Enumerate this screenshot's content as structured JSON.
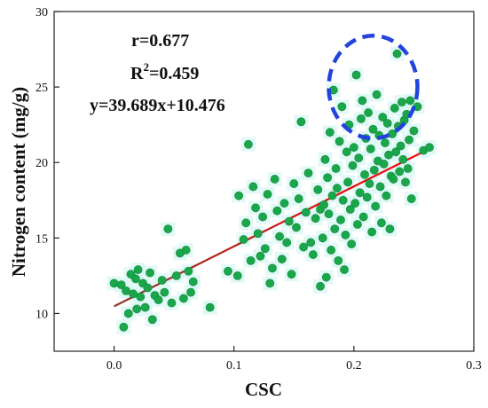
{
  "chart_data": {
    "type": "scatter",
    "xlabel": "CSC",
    "ylabel": "Nitrogen content (mg/g)",
    "xlim": [
      -0.05,
      0.3
    ],
    "ylim": [
      7.5,
      30
    ],
    "xticks": [
      0.0,
      0.1,
      0.2,
      0.3
    ],
    "xtick_labels": [
      "0.0",
      "0.1",
      "0.2",
      "0.3"
    ],
    "yticks": [
      10,
      15,
      20,
      25,
      30
    ],
    "ytick_labels": [
      "10",
      "15",
      "20",
      "25",
      "30"
    ],
    "annotations": {
      "r": "r=0.677",
      "r2_prefix": "R",
      "r2_sup": "2",
      "r2_suffix": "=0.459",
      "equation": "y=39.689x+10.476"
    },
    "fit_line": {
      "slope": 39.689,
      "intercept": 10.476,
      "x_range": [
        0.0,
        0.265
      ]
    },
    "highlight_ellipse": {
      "cx": 0.216,
      "cy": 25.0,
      "rx": 0.037,
      "ry": 3.4
    },
    "colors": {
      "points": "#1aa64a",
      "point_stroke": "#148a3c",
      "fit_line_start": "#8b3a2f",
      "fit_line_end": "#ff0000",
      "ellipse": "#2244dd",
      "halo": "#d8f7f4"
    },
    "points": [
      [
        0.0,
        12.0
      ],
      [
        0.006,
        11.9
      ],
      [
        0.008,
        9.1
      ],
      [
        0.01,
        11.5
      ],
      [
        0.012,
        10.0
      ],
      [
        0.014,
        12.6
      ],
      [
        0.016,
        11.3
      ],
      [
        0.018,
        12.3
      ],
      [
        0.019,
        10.3
      ],
      [
        0.02,
        12.9
      ],
      [
        0.022,
        11.1
      ],
      [
        0.024,
        12.0
      ],
      [
        0.026,
        10.4
      ],
      [
        0.028,
        11.7
      ],
      [
        0.03,
        12.7
      ],
      [
        0.032,
        9.6
      ],
      [
        0.034,
        11.2
      ],
      [
        0.037,
        10.9
      ],
      [
        0.04,
        12.2
      ],
      [
        0.042,
        11.4
      ],
      [
        0.045,
        15.6
      ],
      [
        0.048,
        10.7
      ],
      [
        0.052,
        12.5
      ],
      [
        0.055,
        14.0
      ],
      [
        0.058,
        11.0
      ],
      [
        0.06,
        14.2
      ],
      [
        0.062,
        12.8
      ],
      [
        0.064,
        11.4
      ],
      [
        0.066,
        12.1
      ],
      [
        0.08,
        10.4
      ],
      [
        0.095,
        12.8
      ],
      [
        0.103,
        12.5
      ],
      [
        0.104,
        17.8
      ],
      [
        0.108,
        14.9
      ],
      [
        0.11,
        16.0
      ],
      [
        0.112,
        21.2
      ],
      [
        0.114,
        13.5
      ],
      [
        0.116,
        18.4
      ],
      [
        0.118,
        17.0
      ],
      [
        0.12,
        15.3
      ],
      [
        0.122,
        13.8
      ],
      [
        0.124,
        16.4
      ],
      [
        0.126,
        14.3
      ],
      [
        0.128,
        17.9
      ],
      [
        0.13,
        12.0
      ],
      [
        0.132,
        13.0
      ],
      [
        0.134,
        18.9
      ],
      [
        0.136,
        16.8
      ],
      [
        0.138,
        15.1
      ],
      [
        0.14,
        13.6
      ],
      [
        0.142,
        17.3
      ],
      [
        0.144,
        14.7
      ],
      [
        0.146,
        16.1
      ],
      [
        0.148,
        12.6
      ],
      [
        0.15,
        18.6
      ],
      [
        0.152,
        15.7
      ],
      [
        0.154,
        17.6
      ],
      [
        0.156,
        22.7
      ],
      [
        0.158,
        14.4
      ],
      [
        0.16,
        16.7
      ],
      [
        0.162,
        19.3
      ],
      [
        0.164,
        14.7
      ],
      [
        0.166,
        13.9
      ],
      [
        0.168,
        16.3
      ],
      [
        0.17,
        18.2
      ],
      [
        0.172,
        11.8
      ],
      [
        0.172,
        16.9
      ],
      [
        0.174,
        15.0
      ],
      [
        0.175,
        17.2
      ],
      [
        0.176,
        20.2
      ],
      [
        0.177,
        12.4
      ],
      [
        0.178,
        19.0
      ],
      [
        0.179,
        16.6
      ],
      [
        0.18,
        22.0
      ],
      [
        0.181,
        14.2
      ],
      [
        0.182,
        17.8
      ],
      [
        0.183,
        24.8
      ],
      [
        0.184,
        15.6
      ],
      [
        0.185,
        19.6
      ],
      [
        0.186,
        18.3
      ],
      [
        0.187,
        13.5
      ],
      [
        0.188,
        21.4
      ],
      [
        0.189,
        16.2
      ],
      [
        0.19,
        23.7
      ],
      [
        0.191,
        17.5
      ],
      [
        0.192,
        12.9
      ],
      [
        0.193,
        15.2
      ],
      [
        0.194,
        20.7
      ],
      [
        0.195,
        18.7
      ],
      [
        0.196,
        22.5
      ],
      [
        0.197,
        16.9
      ],
      [
        0.198,
        14.6
      ],
      [
        0.199,
        19.8
      ],
      [
        0.2,
        21.0
      ],
      [
        0.201,
        17.3
      ],
      [
        0.202,
        25.8
      ],
      [
        0.203,
        15.9
      ],
      [
        0.204,
        20.3
      ],
      [
        0.205,
        18.0
      ],
      [
        0.206,
        22.9
      ],
      [
        0.207,
        24.1
      ],
      [
        0.208,
        16.4
      ],
      [
        0.209,
        19.2
      ],
      [
        0.21,
        21.6
      ],
      [
        0.211,
        17.7
      ],
      [
        0.212,
        23.3
      ],
      [
        0.213,
        18.6
      ],
      [
        0.214,
        20.9
      ],
      [
        0.215,
        15.4
      ],
      [
        0.216,
        22.2
      ],
      [
        0.217,
        19.5
      ],
      [
        0.218,
        17.1
      ],
      [
        0.219,
        24.5
      ],
      [
        0.22,
        20.1
      ],
      [
        0.221,
        21.8
      ],
      [
        0.222,
        18.4
      ],
      [
        0.223,
        16.0
      ],
      [
        0.224,
        23.0
      ],
      [
        0.225,
        19.9
      ],
      [
        0.226,
        21.3
      ],
      [
        0.227,
        17.8
      ],
      [
        0.228,
        22.6
      ],
      [
        0.229,
        20.5
      ],
      [
        0.23,
        15.6
      ],
      [
        0.231,
        19.1
      ],
      [
        0.232,
        21.9
      ],
      [
        0.233,
        18.9
      ],
      [
        0.234,
        23.6
      ],
      [
        0.235,
        20.7
      ],
      [
        0.236,
        27.2
      ],
      [
        0.237,
        22.4
      ],
      [
        0.238,
        19.4
      ],
      [
        0.239,
        21.1
      ],
      [
        0.24,
        24.0
      ],
      [
        0.241,
        20.2
      ],
      [
        0.242,
        22.8
      ],
      [
        0.243,
        18.7
      ],
      [
        0.244,
        23.2
      ],
      [
        0.245,
        19.6
      ],
      [
        0.246,
        21.5
      ],
      [
        0.247,
        24.1
      ],
      [
        0.248,
        17.6
      ],
      [
        0.25,
        22.1
      ],
      [
        0.253,
        23.7
      ],
      [
        0.258,
        20.8
      ],
      [
        0.263,
        21.0
      ]
    ]
  }
}
